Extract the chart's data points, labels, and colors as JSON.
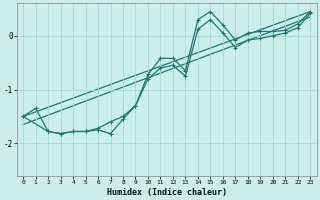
{
  "xlabel": "Humidex (Indice chaleur)",
  "bg_color": "#cceee8",
  "line_color": "#1a7a6e",
  "grid_color": "#a8d8d0",
  "xlim": [
    -0.5,
    23.5
  ],
  "ylim": [
    -2.6,
    0.6
  ],
  "yticks": [
    0,
    -1,
    -2
  ],
  "xticks": [
    0,
    1,
    2,
    3,
    4,
    5,
    6,
    7,
    8,
    9,
    10,
    11,
    12,
    13,
    14,
    15,
    16,
    17,
    18,
    19,
    20,
    21,
    22,
    23
  ],
  "line1_x": [
    0,
    1,
    2,
    3,
    4,
    5,
    6,
    7,
    8,
    9,
    10,
    11,
    12,
    13,
    14,
    15,
    16,
    17,
    18,
    19,
    20,
    21,
    22,
    23
  ],
  "line1_y": [
    -1.5,
    -1.35,
    -1.78,
    -1.82,
    -1.78,
    -1.78,
    -1.75,
    -1.82,
    -1.55,
    -1.3,
    -0.72,
    -0.42,
    -0.42,
    -0.65,
    0.3,
    0.45,
    0.2,
    -0.08,
    0.05,
    0.08,
    0.08,
    0.1,
    0.22,
    0.45
  ],
  "line2_x": [
    0,
    2,
    3,
    4,
    5,
    6,
    7,
    8,
    9,
    10,
    11,
    12,
    13,
    14,
    15,
    16,
    17,
    18,
    19,
    20,
    21,
    22,
    23
  ],
  "line2_y": [
    -1.5,
    -1.78,
    -1.82,
    -1.78,
    -1.78,
    -1.72,
    -1.6,
    -1.5,
    -1.3,
    -0.8,
    -0.6,
    -0.55,
    -0.75,
    0.12,
    0.3,
    0.05,
    -0.22,
    -0.08,
    -0.05,
    0.0,
    0.05,
    0.15,
    0.42
  ],
  "line3_x": [
    0,
    23
  ],
  "line3_y": [
    -1.5,
    0.45
  ],
  "line4_x": [
    0,
    23
  ],
  "line4_y": [
    -1.65,
    0.35
  ]
}
